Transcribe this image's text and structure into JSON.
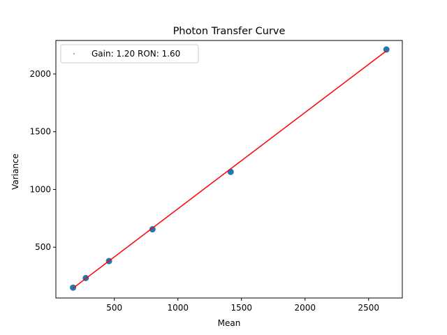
{
  "chart_data": {
    "type": "scatter",
    "title": "Photon Transfer Curve",
    "xlabel": "Mean",
    "ylabel": "Variance",
    "xlim": [
      40,
      2765
    ],
    "ylim": [
      60,
      2290
    ],
    "xticks": [
      500,
      1000,
      1500,
      2000,
      2500
    ],
    "yticks": [
      500,
      1000,
      1500,
      2000
    ],
    "grid": false,
    "legend_position": "upper-left",
    "legend_entries": [
      "Gain: 1.20 RON: 1.60"
    ],
    "points": {
      "color": "#1f77b4",
      "x": [
        175,
        275,
        458,
        800,
        1415,
        2640
      ],
      "y": [
        150,
        233,
        380,
        655,
        1152,
        2212
      ]
    },
    "fit": {
      "label": "Gain: 1.20 RON: 1.60",
      "color": "#ff0000",
      "x": [
        175,
        2640
      ],
      "y": [
        145,
        2200
      ]
    }
  }
}
